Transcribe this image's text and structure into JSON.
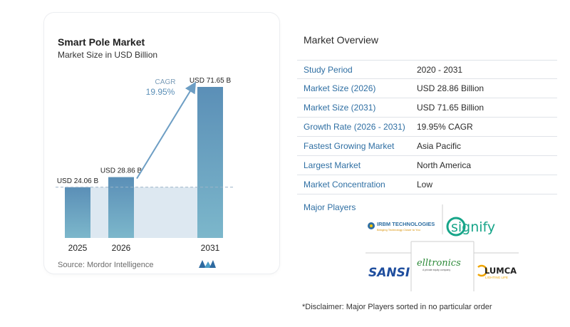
{
  "chart": {
    "title": "Smart Pole Market",
    "subtitle": "Market Size in USD Billion",
    "source": "Source:  Mordor Intelligence",
    "cagr_label": "CAGR",
    "cagr_value": "19.95%"
  },
  "chart_data": {
    "type": "bar",
    "title": "Smart Pole Market",
    "subtitle": "Market Size in USD Billion",
    "categories": [
      "2025",
      "2026",
      "2031"
    ],
    "values": [
      24.06,
      28.86,
      71.65
    ],
    "data_labels": [
      "USD 24.06 B",
      "USD 28.86 B",
      "USD 71.65 B"
    ],
    "ylim": [
      0,
      71.65
    ],
    "grid": false,
    "annotation": {
      "text": "CAGR 19.95%",
      "from": "2026",
      "to": "2031"
    },
    "reference_line_value": 24.06
  },
  "overview": {
    "title": "Market Overview",
    "rows": [
      {
        "label": "Study Period",
        "value": "2020 - 2031"
      },
      {
        "label": "Market Size (2026)",
        "value": "USD 28.86 Billion"
      },
      {
        "label": "Market Size (2031)",
        "value": "USD 71.65 Billion"
      },
      {
        "label": "Growth Rate (2026 - 2031)",
        "value": "19.95% CAGR"
      },
      {
        "label": "Fastest Growing Market",
        "value": "Asia Pacific"
      },
      {
        "label": "Largest Market",
        "value": "North America"
      },
      {
        "label": "Market Concentration",
        "value": "Low"
      }
    ]
  },
  "players": {
    "title": "Major Players",
    "logos": [
      {
        "name": "IRBM TECHNOLOGIES",
        "tagline": "Bringing Technology Closer to You"
      },
      {
        "name": "signify"
      },
      {
        "name": "SANSI"
      },
      {
        "name": "elltronics",
        "tagline": "A private equity company"
      },
      {
        "name": "LUMCA",
        "tagline": "LIGHTING LIFE"
      }
    ]
  },
  "disclaimer": "*Disclaimer: Major Players sorted in no particular order",
  "colors": {
    "bar_top": "#5b8fb7",
    "bar_bottom": "#79b3c9",
    "shade": "#dde8f1",
    "arrow": "#6d9ec4",
    "label_blue": "#2f6fa3"
  }
}
